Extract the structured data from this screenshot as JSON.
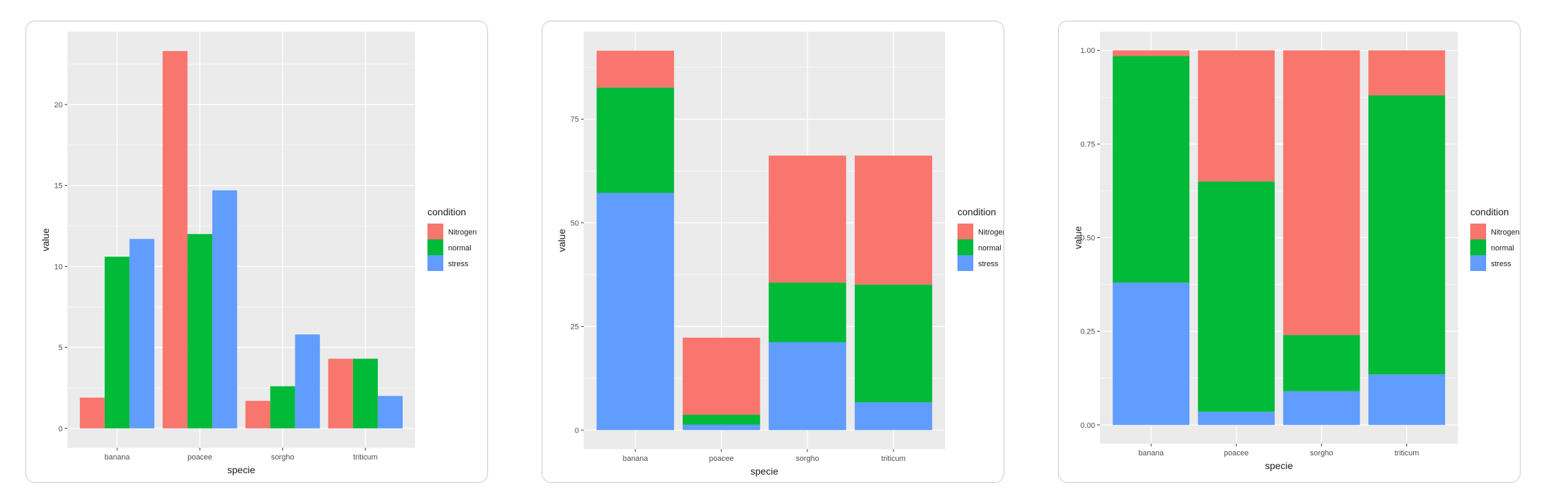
{
  "colors": {
    "Nitrogen": "#f8766d",
    "normal": "#00ba38",
    "stress": "#619cff",
    "panel_bg": "#ebebeb",
    "grid": "#ffffff"
  },
  "chart_data": [
    {
      "type": "bar",
      "position": "dodge",
      "categories": [
        "banana",
        "poacee",
        "sorgho",
        "triticum"
      ],
      "series": [
        {
          "name": "Nitrogen",
          "values": [
            1.9,
            23.3,
            1.7,
            4.3
          ]
        },
        {
          "name": "normal",
          "values": [
            10.6,
            12.0,
            2.6,
            4.3
          ]
        },
        {
          "name": "stress",
          "values": [
            11.7,
            14.7,
            5.8,
            2.0
          ]
        }
      ],
      "xlabel": "specie",
      "ylabel": "value",
      "ylim": [
        -1.2,
        24.5
      ],
      "yticks": [
        0,
        5,
        10,
        15,
        20
      ],
      "ytick_labels": [
        "0",
        "5",
        "10",
        "15",
        "20"
      ],
      "legend_title": "condition",
      "legend_position": "right"
    },
    {
      "type": "bar",
      "position": "stack",
      "categories": [
        "banana",
        "poacee",
        "sorgho",
        "triticum"
      ],
      "series": [
        {
          "name": "Nitrogen",
          "values": [
            8.9,
            18.6,
            30.6,
            31.1
          ]
        },
        {
          "name": "normal",
          "values": [
            25.4,
            2.4,
            14.4,
            28.4
          ]
        },
        {
          "name": "stress",
          "values": [
            57.2,
            1.3,
            21.2,
            6.7
          ]
        }
      ],
      "xlabel": "specie",
      "ylabel": "value",
      "ylim": [
        -4.6,
        96.1
      ],
      "yticks": [
        0,
        25,
        50,
        75
      ],
      "ytick_labels": [
        "0",
        "25",
        "50",
        "75"
      ],
      "legend_title": "condition",
      "legend_position": "right"
    },
    {
      "type": "bar",
      "position": "fill",
      "categories": [
        "banana",
        "poacee",
        "sorgho",
        "triticum"
      ],
      "series": [
        {
          "name": "Nitrogen",
          "values": [
            0.015,
            0.35,
            0.76,
            0.12
          ]
        },
        {
          "name": "normal",
          "values": [
            0.605,
            0.615,
            0.15,
            0.745
          ]
        },
        {
          "name": "stress",
          "values": [
            0.38,
            0.035,
            0.09,
            0.135
          ]
        }
      ],
      "xlabel": "specie",
      "ylabel": "value",
      "ylim": [
        -0.05,
        1.05
      ],
      "yticks": [
        0,
        0.25,
        0.5,
        0.75,
        1.0
      ],
      "ytick_labels": [
        "0.00",
        "0.25",
        "0.50",
        "0.75",
        "1.00"
      ],
      "legend_title": "condition",
      "legend_position": "right"
    }
  ]
}
